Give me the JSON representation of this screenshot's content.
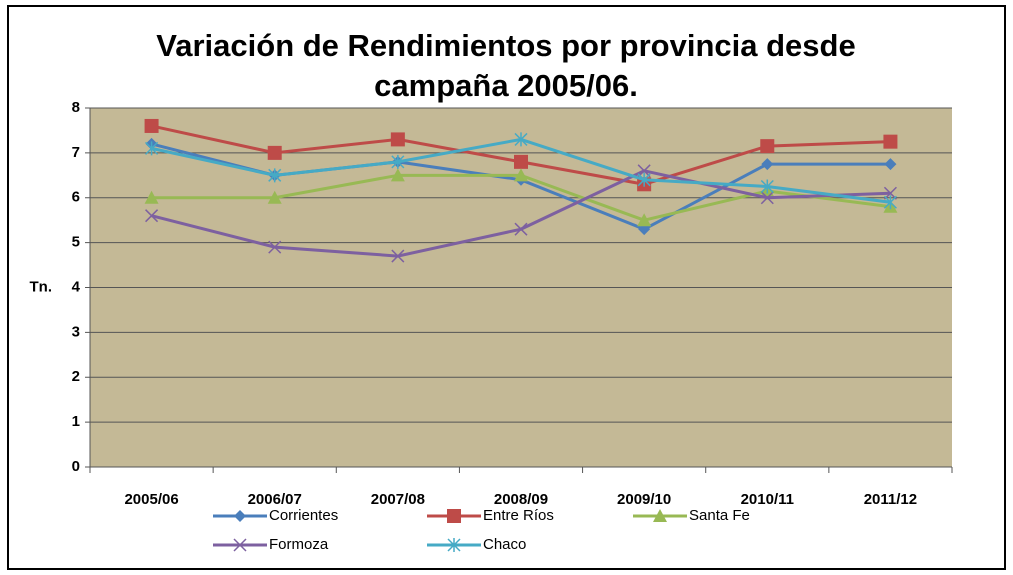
{
  "chart_data": {
    "type": "line",
    "title": "Variación de Rendimientos por provincia desde campaña 2005/06.",
    "y_label": "Tn.",
    "categories": [
      "2005/06",
      "2006/07",
      "2007/08",
      "2008/09",
      "2009/10",
      "2010/11",
      "2011/12"
    ],
    "series": [
      {
        "name": "Corrientes",
        "color": "#4a7ebb",
        "marker": "diamond",
        "values": [
          7.2,
          6.5,
          6.8,
          6.4,
          5.3,
          6.75,
          6.75
        ]
      },
      {
        "name": "Entre Ríos",
        "color": "#be4b48",
        "marker": "square",
        "values": [
          7.6,
          7.0,
          7.3,
          6.8,
          6.3,
          7.15,
          7.25
        ]
      },
      {
        "name": "Santa Fe",
        "color": "#98b954",
        "marker": "triangle",
        "values": [
          6.0,
          6.0,
          6.5,
          6.5,
          5.5,
          6.15,
          5.8
        ]
      },
      {
        "name": "Formoza",
        "color": "#7d60a0",
        "marker": "x",
        "values": [
          5.6,
          4.9,
          4.7,
          5.3,
          6.6,
          6.0,
          6.1
        ]
      },
      {
        "name": "Chaco",
        "color": "#46aac5",
        "marker": "star",
        "values": [
          7.1,
          6.5,
          6.8,
          7.3,
          6.4,
          6.25,
          5.9
        ]
      }
    ],
    "ylim": [
      0,
      8
    ],
    "yticks": [
      0,
      1,
      2,
      3,
      4,
      5,
      6,
      7,
      8
    ],
    "grid": true,
    "plot_background": "#c4b996",
    "legend": "bottom"
  }
}
